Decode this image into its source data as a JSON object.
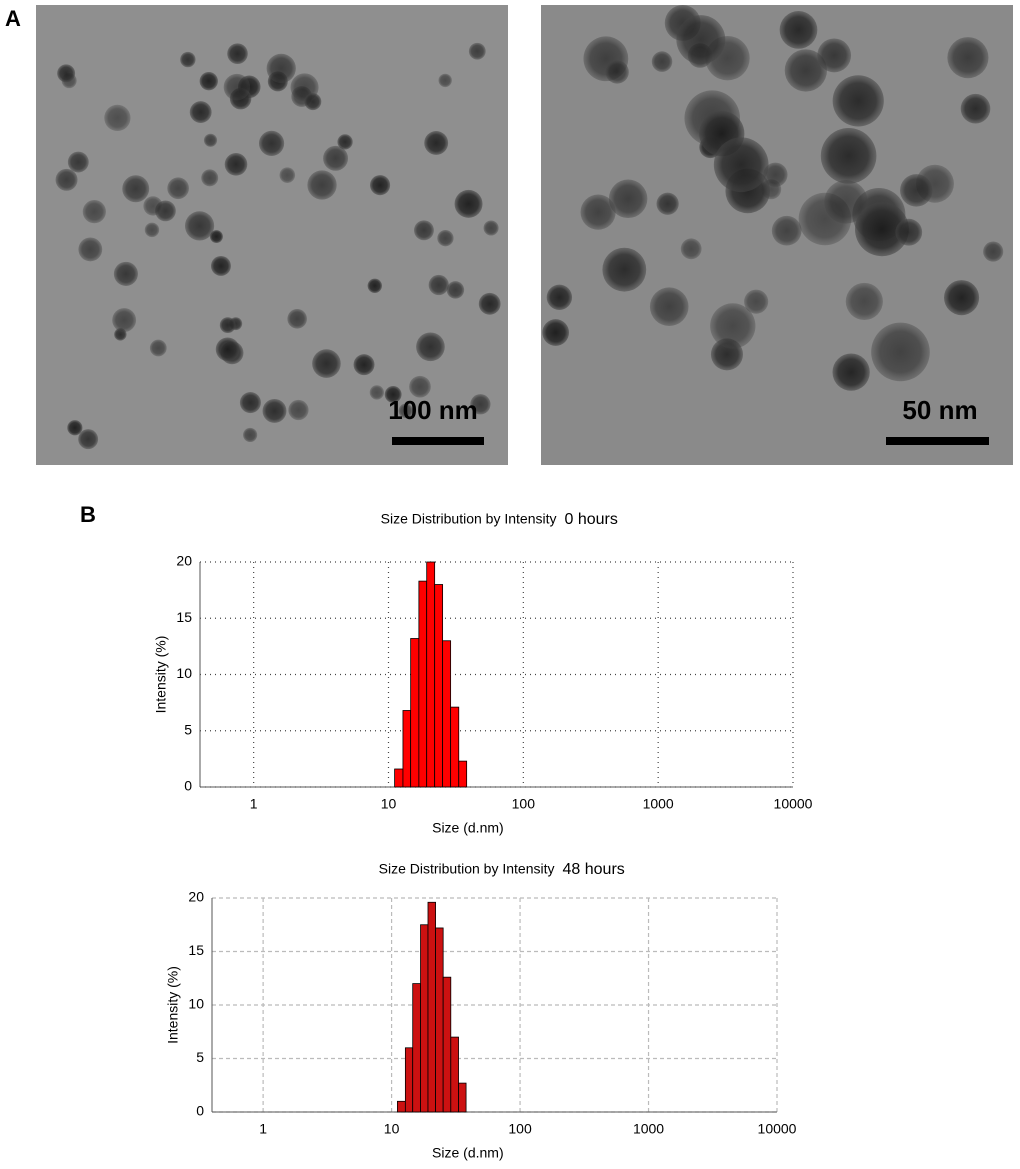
{
  "panel_labels": [
    "A",
    "B"
  ],
  "images": [
    {
      "scale_bar": "100 nm"
    },
    {
      "scale_bar": "50 nm"
    }
  ],
  "chart_data": [
    {
      "type": "histogram",
      "title": "Size Distribution by Intensity",
      "subtitle": "0 hours",
      "x_label": "Size (d.nm)",
      "y_label": "Intensity (%)",
      "bins": [
        11.1,
        12.8,
        14.6,
        16.8,
        19.2,
        22.0,
        25.2,
        28.9,
        33.2,
        38.0
      ],
      "values": [
        1.6,
        6.8,
        13.2,
        18.3,
        20.0,
        18.0,
        13.0,
        7.1,
        2.3
      ],
      "color": "#ff0000",
      "x_log": true,
      "xlim": [
        0.4,
        10000
      ],
      "xticks": [
        1,
        10,
        100,
        1000,
        10000
      ],
      "ylim": [
        0,
        20
      ],
      "yticks": [
        0,
        5,
        10,
        15,
        20
      ],
      "grid": true,
      "grid_style": "dotted"
    },
    {
      "type": "histogram",
      "title": "Size Distribution by Intensity",
      "subtitle": "48 hours",
      "x_label": "Size (d.nm)",
      "y_label": "Intensity (%)",
      "bins": [
        11.1,
        12.8,
        14.6,
        16.8,
        19.2,
        22.0,
        25.2,
        28.9,
        33.2,
        38.0
      ],
      "values": [
        1.0,
        6.0,
        12.0,
        17.5,
        19.6,
        17.2,
        12.6,
        7.0,
        2.7
      ],
      "color": "#cc1111",
      "x_log": true,
      "xlim": [
        0.4,
        10000
      ],
      "xticks": [
        1,
        10,
        100,
        1000,
        10000
      ],
      "ylim": [
        0,
        20
      ],
      "yticks": [
        0,
        5,
        10,
        15,
        20
      ],
      "grid": true,
      "grid_style": "dashed"
    }
  ]
}
